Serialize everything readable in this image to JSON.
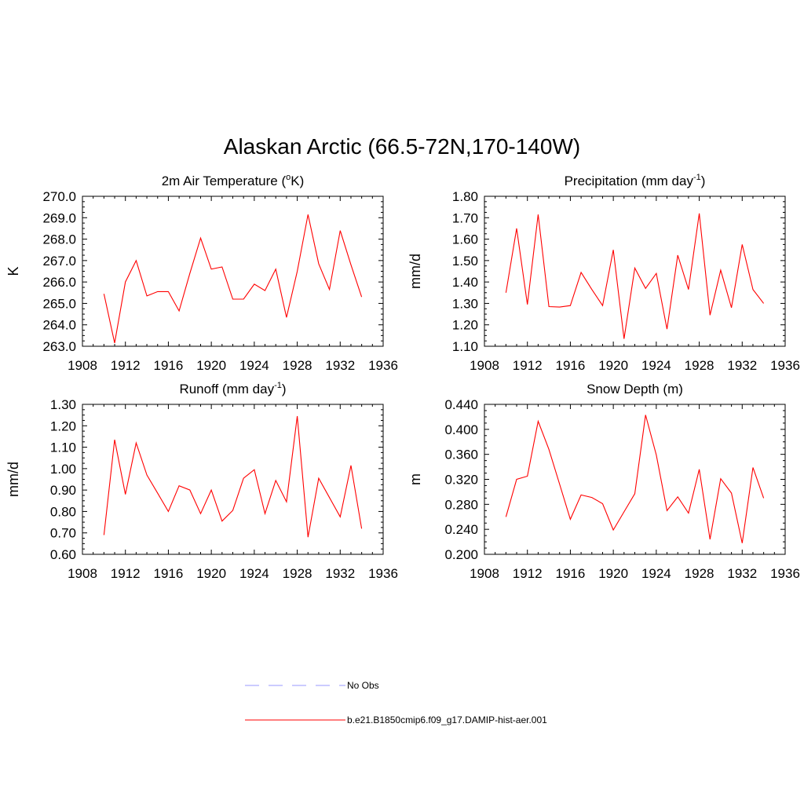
{
  "figure": {
    "title": "Alaskan Arctic (66.5-72N,170-140W)"
  },
  "legend": {
    "entries": [
      {
        "label": "No Obs",
        "color": "#9999ff",
        "dashed": true
      },
      {
        "label": "b.e21.B1850cmip6.f09_g17.DAMIP-hist-aer.001",
        "color": "#ff0000",
        "dashed": false
      }
    ]
  },
  "chart_data": [
    {
      "type": "line",
      "title": "2m Air Temperature (",
      "title_sup": "o",
      "title_tail": "K)",
      "xlabel": "",
      "ylabel": "K",
      "xlim": [
        1908,
        1936
      ],
      "ylim": [
        263.0,
        270.0
      ],
      "xticks": [
        1908,
        1912,
        1916,
        1920,
        1924,
        1928,
        1932,
        1936
      ],
      "yticks": [
        "263.0",
        "264.0",
        "265.0",
        "266.0",
        "267.0",
        "268.0",
        "269.0",
        "270.0"
      ],
      "grid": false,
      "series": [
        {
          "color": "#ff0000",
          "x": [
            1910,
            1911,
            1912,
            1913,
            1914,
            1915,
            1916,
            1917,
            1918,
            1919,
            1920,
            1921,
            1922,
            1923,
            1924,
            1925,
            1926,
            1927,
            1928,
            1929,
            1930,
            1931,
            1932,
            1933,
            1934
          ],
          "values": [
            265.45,
            263.15,
            266.0,
            267.0,
            265.35,
            265.55,
            265.55,
            264.65,
            266.4,
            268.05,
            266.6,
            266.7,
            265.2,
            265.2,
            265.9,
            265.6,
            266.6,
            264.35,
            266.5,
            269.15,
            266.85,
            265.65,
            268.4,
            266.8,
            265.3
          ]
        }
      ]
    },
    {
      "type": "line",
      "title": "Precipitation (mm day",
      "title_sup": "-1",
      "title_tail": ")",
      "xlabel": "",
      "ylabel": "mm/d",
      "xlim": [
        1908,
        1936
      ],
      "ylim": [
        1.1,
        1.8
      ],
      "xticks": [
        1908,
        1912,
        1916,
        1920,
        1924,
        1928,
        1932,
        1936
      ],
      "yticks": [
        "1.10",
        "1.20",
        "1.30",
        "1.40",
        "1.50",
        "1.60",
        "1.70",
        "1.80"
      ],
      "grid": false,
      "series": [
        {
          "color": "#ff0000",
          "x": [
            1910,
            1911,
            1912,
            1913,
            1914,
            1915,
            1916,
            1917,
            1918,
            1919,
            1920,
            1921,
            1922,
            1923,
            1924,
            1925,
            1926,
            1927,
            1928,
            1929,
            1930,
            1931,
            1932,
            1933,
            1934
          ],
          "values": [
            1.35,
            1.65,
            1.295,
            1.715,
            1.285,
            1.283,
            1.29,
            1.445,
            1.365,
            1.29,
            1.55,
            1.135,
            1.465,
            1.37,
            1.44,
            1.18,
            1.525,
            1.365,
            1.72,
            1.245,
            1.455,
            1.28,
            1.575,
            1.365,
            1.3
          ]
        }
      ]
    },
    {
      "type": "line",
      "title": "Runoff (mm day",
      "title_sup": "-1",
      "title_tail": ")",
      "xlabel": "",
      "ylabel": "mm/d",
      "xlim": [
        1908,
        1936
      ],
      "ylim": [
        0.6,
        1.3
      ],
      "xticks": [
        1908,
        1912,
        1916,
        1920,
        1924,
        1928,
        1932,
        1936
      ],
      "yticks": [
        "0.60",
        "0.70",
        "0.80",
        "0.90",
        "1.00",
        "1.10",
        "1.20",
        "1.30"
      ],
      "grid": false,
      "series": [
        {
          "color": "#ff0000",
          "x": [
            1910,
            1911,
            1912,
            1913,
            1914,
            1915,
            1916,
            1917,
            1918,
            1919,
            1920,
            1921,
            1922,
            1923,
            1924,
            1925,
            1926,
            1927,
            1928,
            1929,
            1930,
            1931,
            1932,
            1933,
            1934
          ],
          "values": [
            0.69,
            1.135,
            0.88,
            1.12,
            0.97,
            0.885,
            0.8,
            0.92,
            0.9,
            0.79,
            0.9,
            0.755,
            0.805,
            0.955,
            0.995,
            0.79,
            0.945,
            0.845,
            1.245,
            0.68,
            0.955,
            0.865,
            0.775,
            1.015,
            0.72
          ]
        }
      ]
    },
    {
      "type": "line",
      "title": "Snow Depth (m)",
      "title_sup": "",
      "title_tail": "",
      "xlabel": "",
      "ylabel": "m",
      "xlim": [
        1908,
        1936
      ],
      "ylim": [
        0.2,
        0.44
      ],
      "xticks": [
        1908,
        1912,
        1916,
        1920,
        1924,
        1928,
        1932,
        1936
      ],
      "yticks": [
        "0.200",
        "0.240",
        "0.280",
        "0.320",
        "0.360",
        "0.400",
        "0.440"
      ],
      "grid": false,
      "series": [
        {
          "color": "#ff0000",
          "x": [
            1910,
            1911,
            1912,
            1913,
            1914,
            1915,
            1916,
            1917,
            1918,
            1919,
            1920,
            1921,
            1922,
            1923,
            1924,
            1925,
            1926,
            1927,
            1928,
            1929,
            1930,
            1931,
            1932,
            1933,
            1934
          ],
          "values": [
            0.26,
            0.32,
            0.325,
            0.413,
            0.368,
            0.312,
            0.256,
            0.295,
            0.291,
            0.281,
            0.239,
            0.268,
            0.297,
            0.423,
            0.359,
            0.27,
            0.292,
            0.266,
            0.336,
            0.224,
            0.321,
            0.298,
            0.218,
            0.339,
            0.29
          ]
        }
      ]
    }
  ]
}
